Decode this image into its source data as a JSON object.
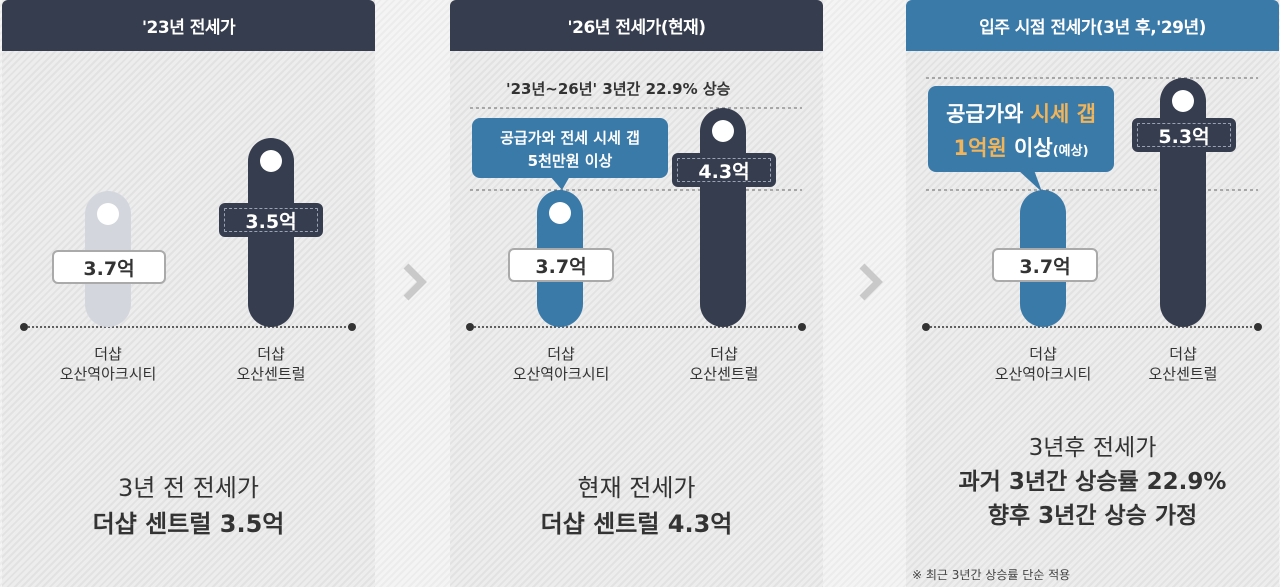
{
  "panels": [
    {
      "header": "'23년 전세가",
      "left_label": "3.7억",
      "right_label": "3.5억",
      "left_category": [
        "더샵",
        "오산역아크시티"
      ],
      "right_category": [
        "더샵",
        "오산센트럴"
      ],
      "bottom_line1": "3년 전 전세가",
      "bottom_line2": "더샵 센트럴 3.5억"
    },
    {
      "header": "'26년 전세가(현재)",
      "rise_note": "'23년~26년' 3년간 22.9% 상승",
      "callout_line1": "공급가와 전세 시세 갭",
      "callout_line2": "5천만원 이상",
      "left_label": "3.7억",
      "right_label": "4.3억",
      "left_category": [
        "더샵",
        "오산역아크시티"
      ],
      "right_category": [
        "더샵",
        "오산센트럴"
      ],
      "bottom_line1": "현재 전세가",
      "bottom_line2": "더샵 센트럴 4.3억"
    },
    {
      "header": "입주 시점 전세가(3년 후,'29년)",
      "callout_line1a": "공급가와 ",
      "callout_line1b": "시세 갭",
      "callout_line2a": "1억원",
      "callout_line2b": " 이상",
      "callout_line2c": "(예상)",
      "left_label": "3.7억",
      "right_label": "5.3억",
      "left_category": [
        "더샵",
        "오산역아크시티"
      ],
      "right_category": [
        "더샵",
        "오산센트럴"
      ],
      "bottom_line1": "3년후 전세가",
      "bottom_line2": "과거 3년간 상승률 22.9%",
      "bottom_line3": "향후 3년간 상승 가정",
      "footnote": "※ 최근 3년간 상승률 단순 적용"
    }
  ],
  "chart_data": [
    {
      "type": "bar",
      "title": "'23년 전세가",
      "categories": [
        "더샵 오산역아크시티",
        "더샵 오산센트럴"
      ],
      "values": [
        3.7,
        3.5
      ]
    },
    {
      "type": "bar",
      "title": "'26년 전세가(현재)",
      "categories": [
        "더샵 오산역아크시티",
        "더샵 오산센트럴"
      ],
      "values": [
        3.7,
        4.3
      ]
    },
    {
      "type": "bar",
      "title": "입주 시점 전세가(3년 후,'29년)",
      "categories": [
        "더샵 오산역아크시티",
        "더샵 오산센트럴"
      ],
      "values": [
        3.7,
        5.3
      ]
    }
  ],
  "colors": {
    "dark": "#363d4e",
    "blue": "#3a7aa9",
    "pale": "#d3d7dd",
    "highlight": "#f0b45a"
  }
}
